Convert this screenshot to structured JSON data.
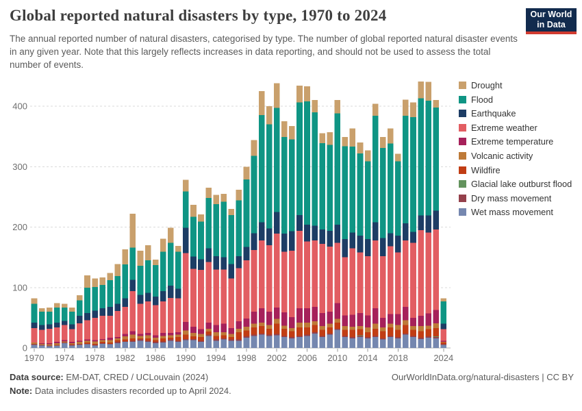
{
  "header": {
    "title": "Global reported natural disasters by type, 1970 to 2024",
    "subtitle": "The annual reported number of natural disasters, categorised by type. The number of global reported natural disaster events in any given year. Note that this largely reflects increases in data reporting, and should not be used to assess the total number of events.",
    "logo": {
      "line1": "Our World",
      "line2": "in Data",
      "bg_color": "#122b4e",
      "accent_color": "#d13b30"
    }
  },
  "footer": {
    "source_label": "Data source:",
    "source_text": " EM-DAT, CRED / UCLouvain (2024)",
    "note_label": "Note:",
    "note_text": " Data includes disasters recorded up to April 2024.",
    "attribution": "OurWorldInData.org/natural-disasters | CC BY"
  },
  "chart_data": {
    "type": "bar",
    "stacked": true,
    "title": "Global reported natural disasters by type, 1970 to 2024",
    "xlabel": "",
    "ylabel": "",
    "ylim": [
      0,
      450
    ],
    "y_ticks": [
      0,
      100,
      200,
      300,
      400
    ],
    "grid": "horizontal-dashed",
    "legend_position": "right",
    "x": [
      1970,
      1971,
      1972,
      1973,
      1974,
      1975,
      1976,
      1977,
      1978,
      1979,
      1980,
      1981,
      1982,
      1983,
      1984,
      1985,
      1986,
      1987,
      1988,
      1989,
      1990,
      1991,
      1992,
      1993,
      1994,
      1995,
      1996,
      1997,
      1998,
      1999,
      2000,
      2001,
      2002,
      2003,
      2004,
      2005,
      2006,
      2007,
      2008,
      2009,
      2010,
      2011,
      2012,
      2013,
      2014,
      2015,
      2016,
      2017,
      2018,
      2019,
      2020,
      2021,
      2022,
      2023,
      2024
    ],
    "x_tick_labels": [
      "1970",
      "1974",
      "1978",
      "1982",
      "1986",
      "1990",
      "1994",
      "1998",
      "2002",
      "2006",
      "2010",
      "2014",
      "2018",
      "2024"
    ],
    "series_bottom_to_top": [
      {
        "name": "Wet mass movement",
        "color": "#7587af",
        "values": [
          5,
          4,
          3,
          4,
          8,
          4,
          5,
          6,
          4,
          7,
          6,
          8,
          10,
          10,
          12,
          10,
          8,
          9,
          12,
          10,
          13,
          13,
          10,
          20,
          12,
          14,
          12,
          12,
          17,
          20,
          22,
          20,
          21,
          18,
          16,
          18,
          20,
          24,
          18,
          22,
          30,
          18,
          16,
          18,
          16,
          18,
          14,
          18,
          16,
          22,
          18,
          15,
          17,
          16,
          5
        ]
      },
      {
        "name": "Dry mass movement",
        "color": "#94404b",
        "values": [
          1,
          1,
          1,
          0,
          1,
          1,
          1,
          1,
          1,
          1,
          1,
          2,
          1,
          2,
          2,
          2,
          2,
          2,
          2,
          2,
          2,
          2,
          2,
          2,
          2,
          2,
          2,
          2,
          2,
          2,
          2,
          2,
          2,
          2,
          2,
          2,
          2,
          2,
          2,
          2,
          2,
          2,
          2,
          2,
          2,
          2,
          2,
          2,
          2,
          2,
          2,
          2,
          2,
          2,
          1
        ]
      },
      {
        "name": "Glacial lake outburst flood",
        "color": "#63935d",
        "values": [
          0,
          0,
          0,
          0,
          0,
          0,
          0,
          0,
          0,
          0,
          0,
          0,
          0,
          0,
          0,
          0,
          0,
          0,
          0,
          0,
          0,
          0,
          0,
          0,
          0,
          0,
          0,
          0,
          0,
          0,
          0,
          0,
          0,
          0,
          0,
          0,
          0,
          0,
          0,
          0,
          0,
          0,
          0,
          1,
          0,
          0,
          0,
          0,
          0,
          0,
          0,
          0,
          0,
          1,
          0
        ]
      },
      {
        "name": "Wildfire",
        "color": "#c13d14",
        "values": [
          1,
          0,
          0,
          1,
          0,
          1,
          1,
          2,
          2,
          2,
          2,
          3,
          3,
          4,
          2,
          4,
          3,
          5,
          3,
          6,
          7,
          4,
          6,
          5,
          6,
          5,
          4,
          12,
          10,
          12,
          12,
          10,
          17,
          12,
          10,
          14,
          12,
          12,
          10,
          10,
          10,
          10,
          12,
          10,
          8,
          12,
          12,
          14,
          12,
          14,
          10,
          11,
          12,
          14,
          3
        ]
      },
      {
        "name": "Volcanic activity",
        "color": "#be7a38",
        "values": [
          2,
          2,
          2,
          3,
          2,
          2,
          3,
          3,
          4,
          3,
          4,
          3,
          5,
          6,
          4,
          5,
          4,
          4,
          4,
          4,
          7,
          6,
          5,
          5,
          6,
          5,
          5,
          6,
          6,
          6,
          6,
          6,
          8,
          5,
          5,
          8,
          8,
          6,
          6,
          6,
          6,
          6,
          5,
          5,
          8,
          8,
          6,
          6,
          8,
          8,
          6,
          8,
          6,
          8,
          1
        ]
      },
      {
        "name": "Extreme temperature",
        "color": "#a6215a",
        "values": [
          0,
          1,
          2,
          2,
          2,
          2,
          2,
          2,
          2,
          2,
          4,
          2,
          4,
          6,
          3,
          4,
          4,
          5,
          4,
          4,
          14,
          10,
          8,
          10,
          12,
          14,
          10,
          12,
          14,
          20,
          24,
          22,
          19,
          22,
          18,
          24,
          24,
          24,
          22,
          20,
          26,
          18,
          20,
          22,
          20,
          26,
          16,
          16,
          18,
          22,
          14,
          17,
          20,
          22,
          2
        ]
      },
      {
        "name": "Extreme weather",
        "color": "#e25d62",
        "values": [
          24,
          22,
          24,
          24,
          25,
          21,
          29,
          32,
          37,
          38,
          36,
          43,
          45,
          66,
          50,
          52,
          50,
          52,
          58,
          56,
          114,
          96,
          98,
          100,
          92,
          90,
          82,
          88,
          96,
          102,
          112,
          110,
          122,
          100,
          110,
          128,
          110,
          110,
          114,
          108,
          100,
          96,
          110,
          100,
          98,
          112,
          102,
          112,
          102,
          110,
          124,
          142,
          134,
          133,
          19
        ]
      },
      {
        "name": "Earthquake",
        "color": "#1d3d65",
        "values": [
          9,
          8,
          7,
          8,
          7,
          8,
          12,
          12,
          12,
          13,
          15,
          12,
          14,
          19,
          15,
          14,
          14,
          17,
          20,
          16,
          42,
          20,
          18,
          23,
          22,
          20,
          24,
          20,
          22,
          28,
          30,
          28,
          36,
          30,
          32,
          26,
          28,
          24,
          24,
          26,
          30,
          30,
          26,
          28,
          28,
          30,
          30,
          22,
          28,
          28,
          18,
          24,
          28,
          31,
          9
        ]
      },
      {
        "name": "Flood",
        "color": "#0f9584",
        "values": [
          31,
          22,
          21,
          25,
          22,
          21,
          26,
          42,
          39,
          38,
          44,
          46,
          56,
          53,
          48,
          54,
          52,
          65,
          71,
          61,
          60,
          66,
          62,
          83,
          86,
          92,
          81,
          92,
          112,
          128,
          177,
          172,
          172,
          160,
          152,
          186,
          204,
          188,
          143,
          142,
          184,
          154,
          142,
          136,
          129,
          176,
          149,
          148,
          123,
          178,
          190,
          194,
          190,
          171,
          37
        ]
      },
      {
        "name": "Drought",
        "color": "#c9a06c",
        "values": [
          9,
          6,
          7,
          7,
          6,
          7,
          8,
          20,
          14,
          13,
          12,
          20,
          25,
          56,
          25,
          25,
          9,
          22,
          25,
          10,
          19,
          20,
          12,
          17,
          15,
          13,
          10,
          18,
          21,
          26,
          40,
          30,
          41,
          26,
          22,
          28,
          25,
          20,
          16,
          21,
          22,
          15,
          30,
          18,
          18,
          20,
          18,
          25,
          12,
          27,
          24,
          28,
          31,
          12,
          5
        ]
      }
    ],
    "legend_order_top_to_bottom": [
      "Drought",
      "Flood",
      "Earthquake",
      "Extreme weather",
      "Extreme temperature",
      "Volcanic activity",
      "Wildfire",
      "Glacial lake outburst flood",
      "Dry mass movement",
      "Wet mass movement"
    ]
  }
}
